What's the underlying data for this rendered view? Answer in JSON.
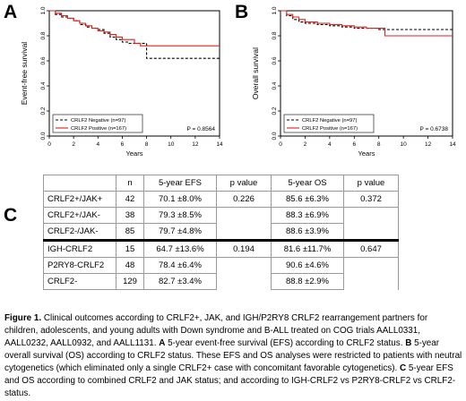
{
  "panels": {
    "a": "A",
    "b": "B",
    "c": "C"
  },
  "chart_data": [
    {
      "type": "line",
      "panel": "A",
      "ylabel": "Event-free survival",
      "xlabel": "Years",
      "xlim": [
        0,
        14
      ],
      "ylim": [
        0,
        1
      ],
      "xticks": [
        "0",
        "2",
        "4",
        "6",
        "8",
        "10",
        "12",
        "14"
      ],
      "yticks": [
        "0.0",
        "0.2",
        "0.4",
        "0.6",
        "0.8",
        "1.0"
      ],
      "pvalue": "P = 0.8564",
      "legend_position": "bottom-left",
      "series": [
        {
          "name": "CRLF2 Negative (n=97)",
          "color": "#000000",
          "style": "dashed",
          "x": [
            0,
            0.5,
            1,
            1.5,
            2,
            2.5,
            3,
            3.5,
            4,
            4.5,
            5,
            5.5,
            6,
            6.5,
            7,
            7.5,
            8,
            9,
            10,
            12,
            14
          ],
          "y": [
            1.0,
            0.97,
            0.95,
            0.94,
            0.92,
            0.89,
            0.87,
            0.86,
            0.85,
            0.82,
            0.79,
            0.77,
            0.75,
            0.74,
            0.74,
            0.74,
            0.62,
            0.62,
            0.62,
            0.62,
            0.62
          ]
        },
        {
          "name": "CRLF2 Positive (n=167)",
          "color": "#e0201d",
          "style": "solid",
          "x": [
            0,
            0.5,
            1,
            1.5,
            2,
            2.5,
            3,
            3.5,
            4,
            4.5,
            5,
            5.5,
            6,
            7,
            7.5,
            8,
            9,
            10,
            12,
            14
          ],
          "y": [
            1.0,
            0.98,
            0.96,
            0.94,
            0.92,
            0.9,
            0.88,
            0.86,
            0.84,
            0.83,
            0.81,
            0.79,
            0.77,
            0.74,
            0.72,
            0.72,
            0.72,
            0.72,
            0.72,
            0.72
          ]
        }
      ]
    },
    {
      "type": "line",
      "panel": "B",
      "ylabel": "Overall survival",
      "xlabel": "Years",
      "xlim": [
        0,
        14
      ],
      "ylim": [
        0,
        1
      ],
      "xticks": [
        "0",
        "2",
        "4",
        "6",
        "8",
        "10",
        "12",
        "14"
      ],
      "yticks": [
        "0.0",
        "0.2",
        "0.4",
        "0.6",
        "0.8",
        "1.0"
      ],
      "pvalue": "P = 0.6738",
      "legend_position": "bottom-left",
      "series": [
        {
          "name": "CRLF2 Negative (n=97)",
          "color": "#000000",
          "style": "dashed",
          "x": [
            0,
            0.5,
            1,
            1.5,
            2,
            3,
            4,
            5,
            6,
            7,
            8,
            9,
            10,
            12,
            14
          ],
          "y": [
            1.0,
            0.96,
            0.93,
            0.91,
            0.9,
            0.89,
            0.88,
            0.87,
            0.86,
            0.86,
            0.85,
            0.85,
            0.85,
            0.85,
            0.85
          ]
        },
        {
          "name": "CRLF2 Positive (n=167)",
          "color": "#e0201d",
          "style": "solid",
          "x": [
            0,
            0.5,
            1,
            1.5,
            2,
            3,
            4,
            5,
            6,
            7,
            8,
            8.5,
            9,
            10,
            12,
            14
          ],
          "y": [
            1.0,
            0.97,
            0.95,
            0.93,
            0.91,
            0.9,
            0.89,
            0.88,
            0.87,
            0.86,
            0.86,
            0.8,
            0.8,
            0.8,
            0.8,
            0.8
          ]
        }
      ]
    },
    {
      "type": "table",
      "panel": "C",
      "columns": [
        "",
        "n",
        "5-year EFS",
        "p value",
        "5-year OS",
        "p value"
      ],
      "rows": [
        [
          "CRLF2+/JAK+",
          "42",
          "70.1 ±8.0%",
          "0.226",
          "85.6 ±6.3%",
          "0.372"
        ],
        [
          "CRLF2+/JAK-",
          "38",
          "79.3 ±8.5%",
          "",
          "88.3 ±6.9%",
          ""
        ],
        [
          "CRLF2-/JAK-",
          "85",
          "79.7 ±4.8%",
          "",
          "88.6 ±3.9%",
          ""
        ],
        [
          "IGH-CRLF2",
          "15",
          "64.7 ±13.6%",
          "0.194",
          "81.6 ±11.7%",
          "0.647"
        ],
        [
          "P2RY8-CRLF2",
          "48",
          "78.4 ±6.4%",
          "",
          "90.6 ±4.6%",
          ""
        ],
        [
          "CRLF2-",
          "129",
          "82.7 ±3.4%",
          "",
          "88.8 ±2.9%",
          ""
        ]
      ]
    }
  ],
  "caption": {
    "lead": "Figure 1.",
    "body": " Clinical outcomes according to CRLF2+, JAK, and IGH/P2RY8 CRLF2 rearrangement partners for children, adolescents, and young adults with Down syndrome and B-ALL treated on COG trials AALL0331, AALL0232, AALL0932, and AALL1131. ",
    "a_letter": "A",
    "a_text": " 5-year event-free survival (EFS) according to CRLF2 status. ",
    "b_letter": "B",
    "b_text": " 5-year overall survival (OS) according to CRLF2 status. These EFS and OS analyses were restricted to patients with neutral cytogenetics (which eliminated only a single CRLF2+ case with concomitant favorable cytogenetics). ",
    "c_letter": "C",
    "c_text": " 5-year EFS and OS according to combined CRLF2 and JAK status; and according to IGH-CRLF2 vs P2RY8-CRLF2 vs CRLF2- status."
  }
}
